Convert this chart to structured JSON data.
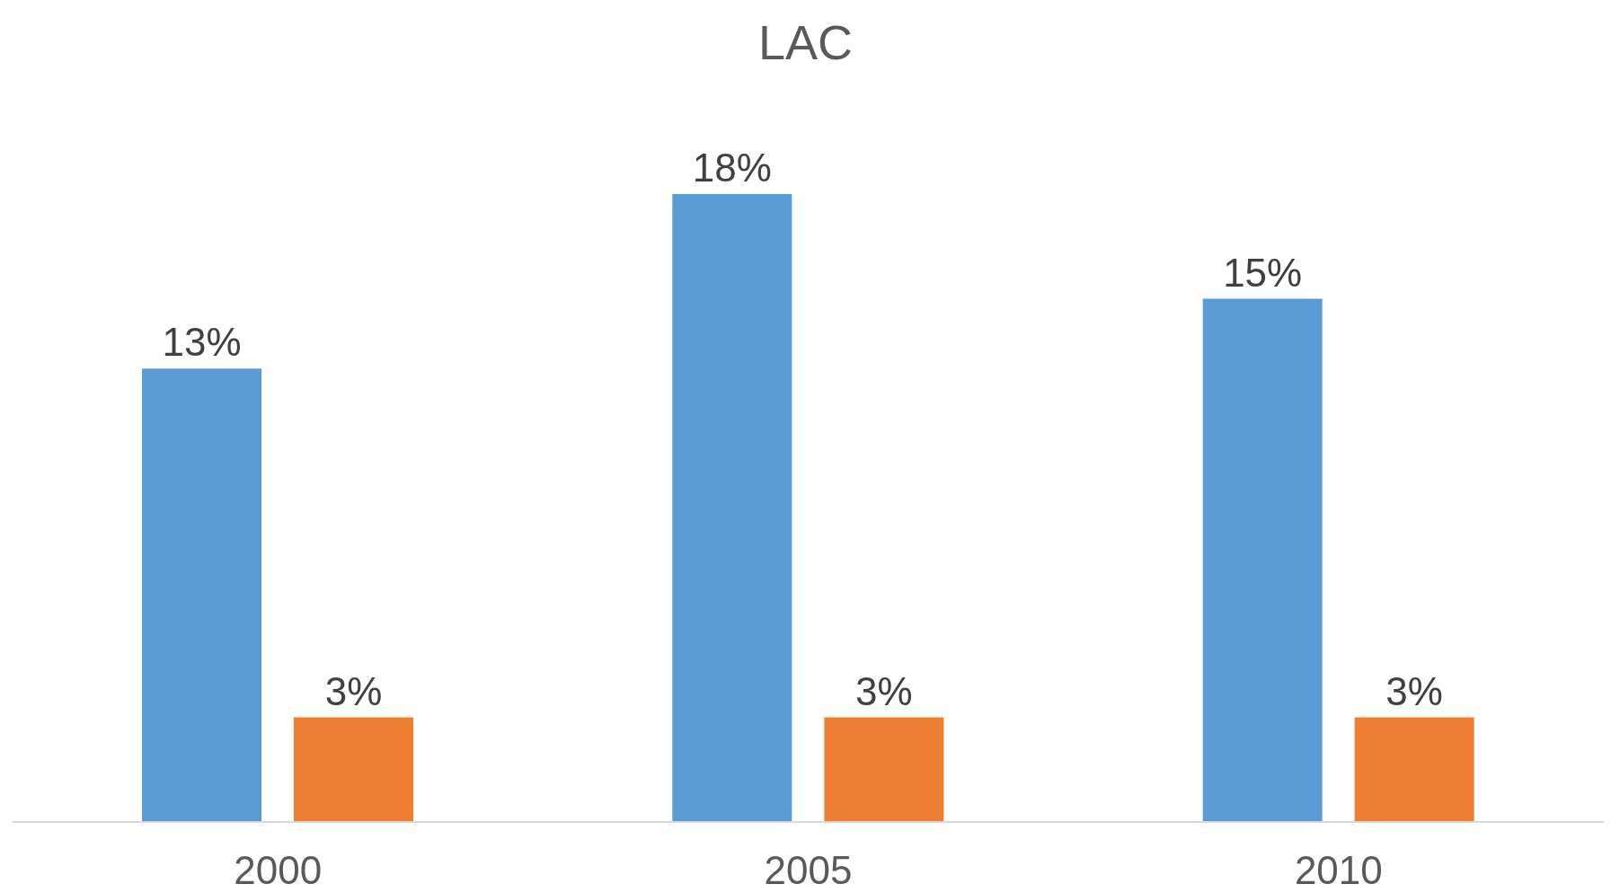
{
  "chart_data": {
    "type": "bar",
    "title": "LAC",
    "categories": [
      "2000",
      "2005",
      "2010"
    ],
    "series": [
      {
        "color": "#5b9bd5",
        "values": [
          13,
          18,
          15
        ],
        "value_labels": [
          "13%",
          "18%",
          "15%"
        ]
      },
      {
        "color": "#ed7d31",
        "values": [
          3,
          3,
          3
        ],
        "value_labels": [
          "3%",
          "3%",
          "3%"
        ]
      }
    ],
    "grid": false,
    "legend": false,
    "tick_labels": "x"
  }
}
